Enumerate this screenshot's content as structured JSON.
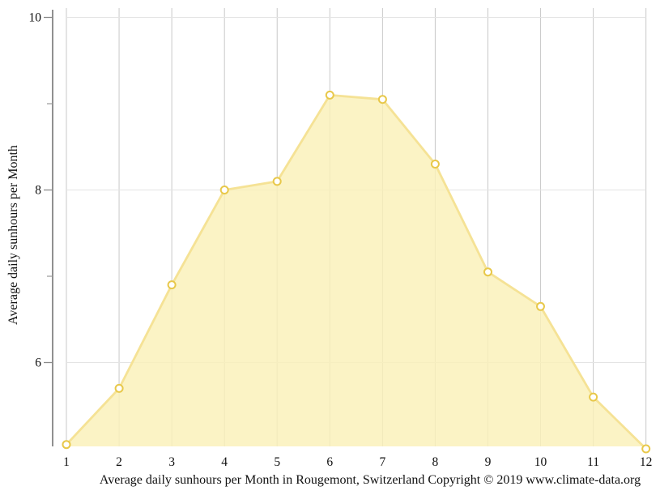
{
  "chart_data": {
    "type": "area",
    "title": "Average daily sunhours per Month in Rougemont, Switzerland Copyright © 2019 www.climate-data.org",
    "ylabel": "Average daily sunhours per Month",
    "xlabel": "",
    "categories": [
      1,
      2,
      3,
      4,
      5,
      6,
      7,
      8,
      9,
      10,
      11,
      12
    ],
    "series": [
      {
        "name": "Average daily sunhours",
        "values": [
          5.05,
          5.7,
          6.9,
          8.0,
          8.1,
          9.1,
          9.05,
          8.3,
          7.05,
          6.65,
          5.6,
          5.0
        ]
      }
    ],
    "ylim": [
      5.0,
      10.1
    ],
    "yticks_major": [
      6,
      8,
      10
    ],
    "yticks_minor": [
      7,
      9
    ],
    "grid": "on",
    "legend": "none",
    "colors": {
      "background": "#FFFFFF",
      "area_fill": "#FAF0B8",
      "line": "#F5E295",
      "marker_stroke": "#E8C84A",
      "marker_fill": "#FFFFFF",
      "grid_vertical": "#C9C9C9",
      "grid_horizontal": "#E4E4E4",
      "axis": "#555555",
      "tick_major": "#8A8A8A",
      "tick_minor": "#9A9A9A",
      "text": "#111111"
    }
  }
}
